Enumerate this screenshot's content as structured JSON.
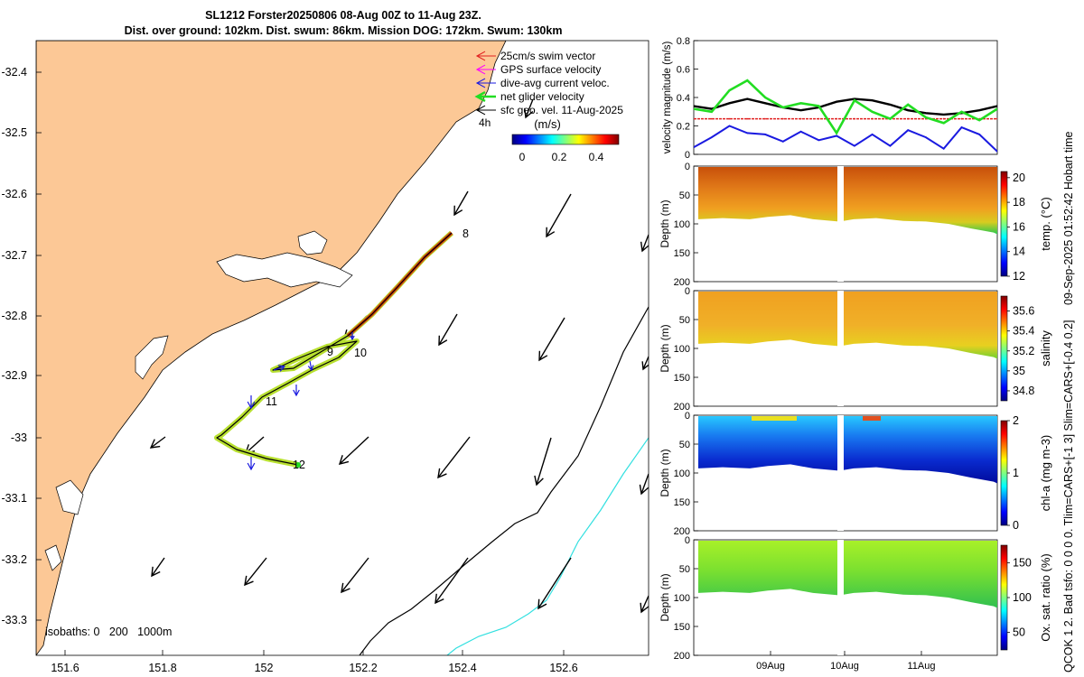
{
  "header": {
    "title_line1": "SL1212 Forster20250806 08-Aug 00Z to 11-Aug 23Z.",
    "title_line2": "Dist. over ground: 102km. Dist. swum: 86km. Mission DOG: 172km. Swum: 130km"
  },
  "side_texts": {
    "timestamp": "09-Sep-2025 01:52:42 Hobart time",
    "limits": "0. Tlim=CARS+[-1 3] Slim=CARS+[-0.4 0.2]",
    "qc": "QCOK 1  2. Bad tsfo: 0  0  0"
  },
  "colors": {
    "land": "#fcc896",
    "swim": "#e02020",
    "gps": "#ff00ff",
    "dive_avg": "#1a1ae0",
    "net": "#22dd22",
    "sfc_geo": "#000000",
    "isobath_200": "#000000",
    "isobath_1000": "#33e0e0"
  },
  "map": {
    "legend": [
      "25cm/s swim vector",
      "GPS surface velocity",
      "dive-avg current veloc.",
      "net glider velocity",
      "sfc geo. vel. 11-Aug-2025"
    ],
    "legend_suffix": "4h",
    "colorbar_title": "(m/s)",
    "colorbar_ticks": [
      "0",
      "0.2",
      "0.4"
    ],
    "isobaths_label": "isobaths: 0   200   1000m",
    "day_labels": [
      "8",
      "9",
      "10",
      "11",
      "12"
    ],
    "x_ticks": [
      "151.6",
      "151.8",
      "152",
      "152.2",
      "152.4",
      "152.6"
    ],
    "y_ticks": [
      "-32.4",
      "-32.5",
      "-32.6",
      "-32.7",
      "-32.8",
      "-32.9",
      "-33",
      "-33.1",
      "-33.2",
      "-33.3"
    ]
  },
  "chart_data": [
    {
      "type": "line",
      "ylabel": "velocity magnitude (m/s)",
      "ylim": [
        0,
        0.8
      ],
      "y_ticks": [
        "0",
        "0.2",
        "0.4",
        "0.6",
        "0.8"
      ],
      "series": [
        {
          "name": "swim",
          "values": [
            0.25,
            0.25,
            0.25,
            0.25,
            0.25,
            0.25,
            0.25,
            0.25,
            0.25,
            0.25,
            0.25,
            0.25,
            0.25,
            0.25,
            0.25,
            0.25,
            0.25,
            0.25
          ]
        },
        {
          "name": "sfc geo",
          "values": [
            0.34,
            0.32,
            0.36,
            0.39,
            0.36,
            0.33,
            0.31,
            0.33,
            0.37,
            0.39,
            0.38,
            0.35,
            0.31,
            0.29,
            0.28,
            0.29,
            0.31,
            0.34
          ]
        },
        {
          "name": "dive-avg",
          "values": [
            0.05,
            0.12,
            0.2,
            0.15,
            0.14,
            0.09,
            0.16,
            0.1,
            0.13,
            0.06,
            0.14,
            0.06,
            0.17,
            0.12,
            0.04,
            0.19,
            0.14,
            0.02
          ]
        },
        {
          "name": "net",
          "values": [
            0.32,
            0.3,
            0.45,
            0.52,
            0.4,
            0.33,
            0.36,
            0.34,
            0.15,
            0.38,
            0.3,
            0.25,
            0.35,
            0.26,
            0.22,
            0.3,
            0.24,
            0.32
          ]
        }
      ]
    },
    {
      "type": "heatmap",
      "label": "temp. (°C)",
      "clim": [
        12,
        20.5
      ],
      "ticks": [
        "12",
        "14",
        "16",
        "18",
        "20"
      ],
      "ylabel": "Depth (m)",
      "depth_ticks": [
        "0",
        "50",
        "100",
        "150",
        "200"
      ]
    },
    {
      "type": "heatmap",
      "label": "salinity",
      "clim": [
        34.7,
        35.75
      ],
      "ticks": [
        "34.8",
        "35",
        "35.2",
        "35.4",
        "35.6"
      ],
      "ylabel": "Depth (m)",
      "depth_ticks": [
        "0",
        "50",
        "100",
        "150",
        "200"
      ]
    },
    {
      "type": "heatmap",
      "label": "chl-a (mg m-3)",
      "clim": [
        0,
        2
      ],
      "ticks": [
        "0",
        "1",
        "2"
      ],
      "ylabel": "Depth (m)",
      "depth_ticks": [
        "0",
        "50",
        "100",
        "150",
        "200"
      ]
    },
    {
      "type": "heatmap",
      "label": "Ox. sat. ratio (%)",
      "clim": [
        25,
        175
      ],
      "ticks": [
        "50",
        "100",
        "150"
      ],
      "ylabel": "Depth (m)",
      "depth_ticks": [
        "0",
        "50",
        "100",
        "150",
        "200"
      ],
      "x_ticks": [
        "09Aug",
        "10Aug",
        "11Aug"
      ]
    }
  ]
}
